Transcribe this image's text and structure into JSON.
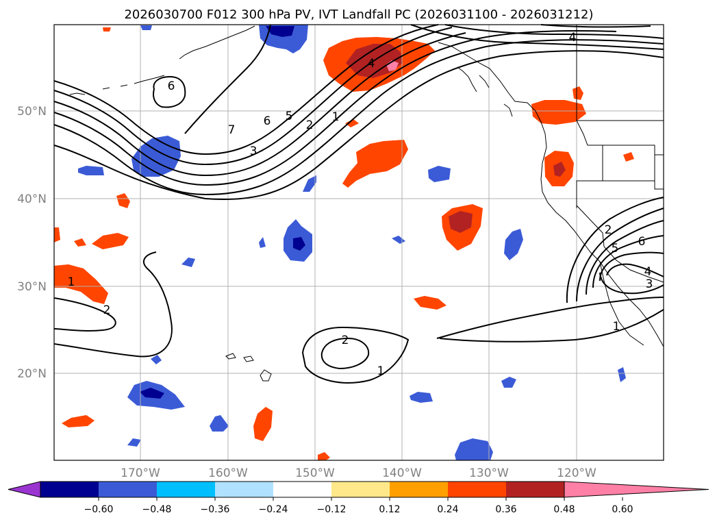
{
  "title": "2026030700 F012 300 hPa PV, IVT Landfall PC (2026031100 - 2026031212)",
  "lat_labels": [
    "50°N",
    "40°N",
    "30°N",
    "20°N"
  ],
  "lon_labels": [
    "170°W",
    "160°W",
    "150°W",
    "140°W",
    "130°W",
    "120°W"
  ],
  "colorbar": {
    "ticks": [
      "−0.60",
      "−0.48",
      "−0.36",
      "−0.24",
      "−0.12",
      "0.12",
      "0.24",
      "0.36",
      "0.48",
      "0.60"
    ],
    "colors": [
      "#9a35d1",
      "#000090",
      "#3b5bd6",
      "#00bfff",
      "#b0e2ff",
      "#ffffff",
      "#ffe88a",
      "#ffa000",
      "#ff4500",
      "#b22222",
      "#ff80a6"
    ]
  },
  "contour_labels": [
    "6",
    "7",
    "6",
    "5",
    "2",
    "1",
    "3",
    "4",
    "4",
    "1",
    "2",
    "2",
    "1",
    "2",
    "6",
    "5",
    "4",
    "3",
    "1"
  ]
}
